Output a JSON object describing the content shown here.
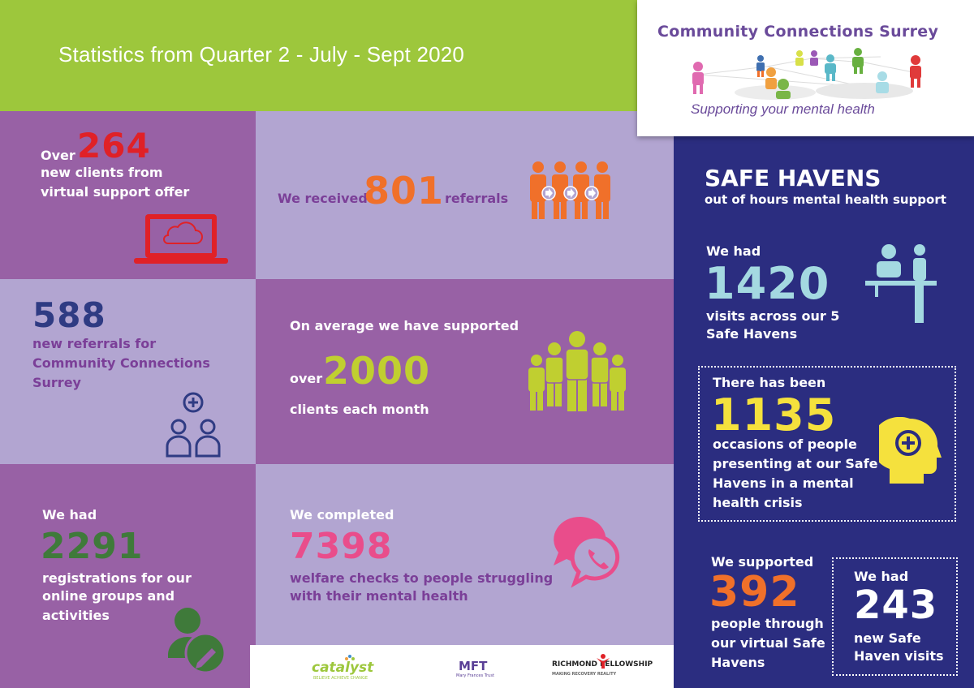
{
  "header": {
    "title": "Statistics from Quarter 2 - July - Sept 2020"
  },
  "logo": {
    "name": "Community Connections Surrey",
    "tagline": "Supporting your mental health"
  },
  "tiles": {
    "new_clients": {
      "prefix": "Over",
      "value": "264",
      "line1": "new clients from",
      "line2": "virtual support offer"
    },
    "referrals": {
      "prefix": "We received",
      "value": "801",
      "suffix": "referrals"
    },
    "ccs_referrals": {
      "value": "588",
      "line1": "new referrals for",
      "line2": "Community Connections",
      "line3": "Surrey"
    },
    "supported": {
      "intro": "On average we have supported",
      "prefix": "over",
      "value": "2000",
      "suffix": "clients each month"
    },
    "registrations": {
      "intro": "We had",
      "value": "2291",
      "line1": "registrations for our",
      "line2": "online groups and",
      "line3": "activities"
    },
    "welfare": {
      "intro": "We completed",
      "value": "7398",
      "line1": "welfare checks to people struggling",
      "line2": "with their mental health"
    }
  },
  "safe_havens": {
    "title": "SAFE HAVENS",
    "subtitle": "out of hours mental health support",
    "visits": {
      "intro": "We had",
      "value": "1420",
      "line1": "visits across our 5",
      "line2": "Safe Havens"
    },
    "crisis": {
      "intro": "There has been",
      "value": "1135",
      "line1": "occasions of people",
      "line2": "presenting at our Safe",
      "line3": "Havens in a mental",
      "line4": "health crisis"
    },
    "virtual": {
      "intro": "We supported",
      "value": "392",
      "line1": "people through",
      "line2": "our virtual Safe",
      "line3": "Havens"
    },
    "new_visits": {
      "intro": "We had",
      "value": "243",
      "line1": "new Safe",
      "line2": "Haven visits"
    }
  },
  "partners": {
    "catalyst": "catalyst",
    "catalyst_tag": "BELIEVE ACHIEVE CHANGE",
    "mft": "MFT",
    "mft_tag": "Mary Frances Trust",
    "richmond": "RICHMOND FELLOWSHIP",
    "richmond_tag": "MAKING RECOVERY REALITY"
  },
  "colors": {
    "green": "#9dc73c",
    "dark_purple": "#9861a5",
    "light_purple": "#b2a5d1",
    "navy": "#2b2d80",
    "red": "#e02127",
    "orange": "#f0702a",
    "navy_text": "#2f3b83",
    "dark_green": "#3f7a3a",
    "pink": "#e94d8b",
    "teal": "#a4d9e1",
    "yellow": "#f5e13d",
    "lime": "#c0cf30"
  }
}
